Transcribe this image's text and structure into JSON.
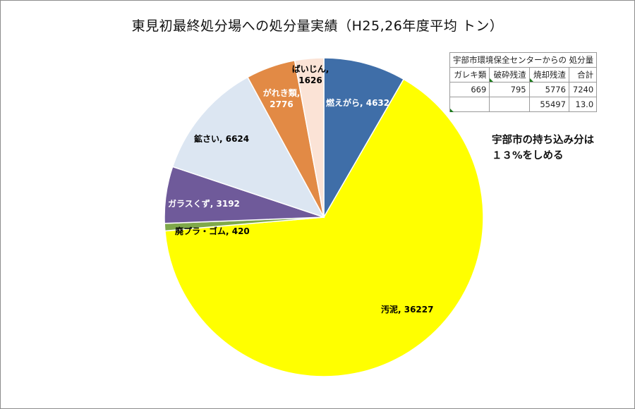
{
  "chart_title": "東見初最終処分場への処分量実績（H25,26年度平均 トン）",
  "chart_data": {
    "type": "pie",
    "title": "東見初最終処分場への処分量実績（H25,26年度平均 トン）",
    "slices": [
      {
        "name": "燃えがら",
        "value": 4632,
        "label": "燃えがら, 4632",
        "color": "#3f6ea8"
      },
      {
        "name": "汚泥",
        "value": 36227,
        "label": "汚泥, 36227",
        "color": "#ffff00"
      },
      {
        "name": "廃プラ・ゴム",
        "value": 420,
        "label": "廃プラ・ゴム, 420",
        "color": "#7fa84a"
      },
      {
        "name": "ガラスくず",
        "value": 3192,
        "label": "ガラスくず, 3192",
        "color": "#6f5a9a"
      },
      {
        "name": "鉱さい",
        "value": 6624,
        "label": "鉱さい, 6624",
        "color": "#dce6f2"
      },
      {
        "name": "がれき類",
        "value": 2776,
        "label": "がれき類, 2776",
        "color": "#e28a45"
      },
      {
        "name": "ばいじん",
        "value": 1626,
        "label": "ばいじん, 1626",
        "color": "#fbe3d6"
      }
    ]
  },
  "table": {
    "caption": "宇部市環境保全センターからの 処分量",
    "headers": [
      "ガレキ類",
      "破砕残渣",
      "焼却残渣",
      "合計"
    ],
    "row1": [
      "669",
      "795",
      "5776",
      "7240"
    ],
    "row2": [
      "",
      "",
      "55497",
      "13.0"
    ]
  },
  "note": {
    "line1": "宇部市の持ち込み分は",
    "line2": "１３%をしめる"
  }
}
